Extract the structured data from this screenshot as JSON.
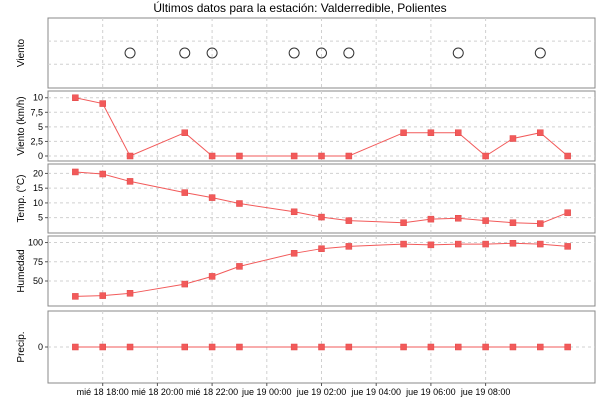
{
  "title": "Últimos datos para la estación: Valderredible, Polientes",
  "x_tick_labels": [
    "mié 18 18:00",
    "mié 18 20:00",
    "mié 18 22:00",
    "jue 19 00:00",
    "jue 19 02:00",
    "jue 19 04:00",
    "jue 19 06:00",
    "jue 19 08:00"
  ],
  "chart_data": {
    "type": "line",
    "x_unit": "hours since mié 18 16:00 (local)",
    "x": [
      1.0,
      2.0,
      3.0,
      5.0,
      6.0,
      7.0,
      9.0,
      10.0,
      11.0,
      13.0,
      14.0,
      15.0,
      16.0,
      17.0,
      18.0,
      19.0
    ],
    "x_ticks": [
      2.0,
      4.0,
      6.0,
      8.0,
      10.0,
      12.0,
      14.0,
      16.0
    ],
    "xlim": [
      0.0,
      20.0
    ],
    "panels": [
      {
        "ylabel": "Viento",
        "kind": "direction",
        "x": [
          3.0,
          5.0,
          6.0,
          9.0,
          10.0,
          11.0,
          15.0,
          18.0
        ],
        "ylim": [
          0,
          1
        ],
        "yticks": []
      },
      {
        "ylabel": "Viento (km/h)",
        "kind": "line",
        "values": [
          10,
          9,
          0,
          4,
          0,
          0,
          0,
          0,
          0,
          4,
          4,
          4,
          0,
          3,
          4,
          0
        ],
        "ylim": [
          0,
          10.3
        ],
        "yticks": [
          0,
          2.5,
          5,
          7.5,
          10
        ],
        "yticklabels": [
          "0",
          "2,5",
          "5",
          "7,5",
          "10"
        ]
      },
      {
        "ylabel": "Temp. (°C)",
        "kind": "line",
        "values": [
          20.5,
          19.8,
          17.3,
          13.5,
          11.8,
          9.8,
          7.0,
          5.2,
          4.0,
          3.3,
          4.5,
          4.8,
          4.0,
          3.3,
          3.0,
          6.7
        ],
        "ylim": [
          1.5,
          21.5
        ],
        "yticks": [
          5,
          10,
          15,
          20
        ],
        "yticklabels": [
          "5",
          "10",
          "15",
          "20"
        ]
      },
      {
        "ylabel": "Humedad",
        "kind": "line",
        "values": [
          30,
          31,
          34,
          46,
          56,
          69,
          86,
          92,
          95,
          98,
          97,
          98,
          98,
          99,
          98,
          95
        ],
        "ylim": [
          24,
          102
        ],
        "yticks": [
          50,
          75,
          100
        ],
        "yticklabels": [
          "50",
          "75",
          "100"
        ]
      },
      {
        "ylabel": "Precip.",
        "kind": "line",
        "values": [
          0,
          0,
          0,
          0,
          0,
          0,
          0,
          0,
          0,
          0,
          0,
          0,
          0,
          0,
          0,
          0
        ],
        "ylim": [
          -1,
          1
        ],
        "yticks": [
          0
        ],
        "yticklabels": [
          "0"
        ]
      }
    ]
  },
  "colors": {
    "series": "#f25a5a",
    "grid": "#d0d0d0",
    "frame": "#888888"
  }
}
